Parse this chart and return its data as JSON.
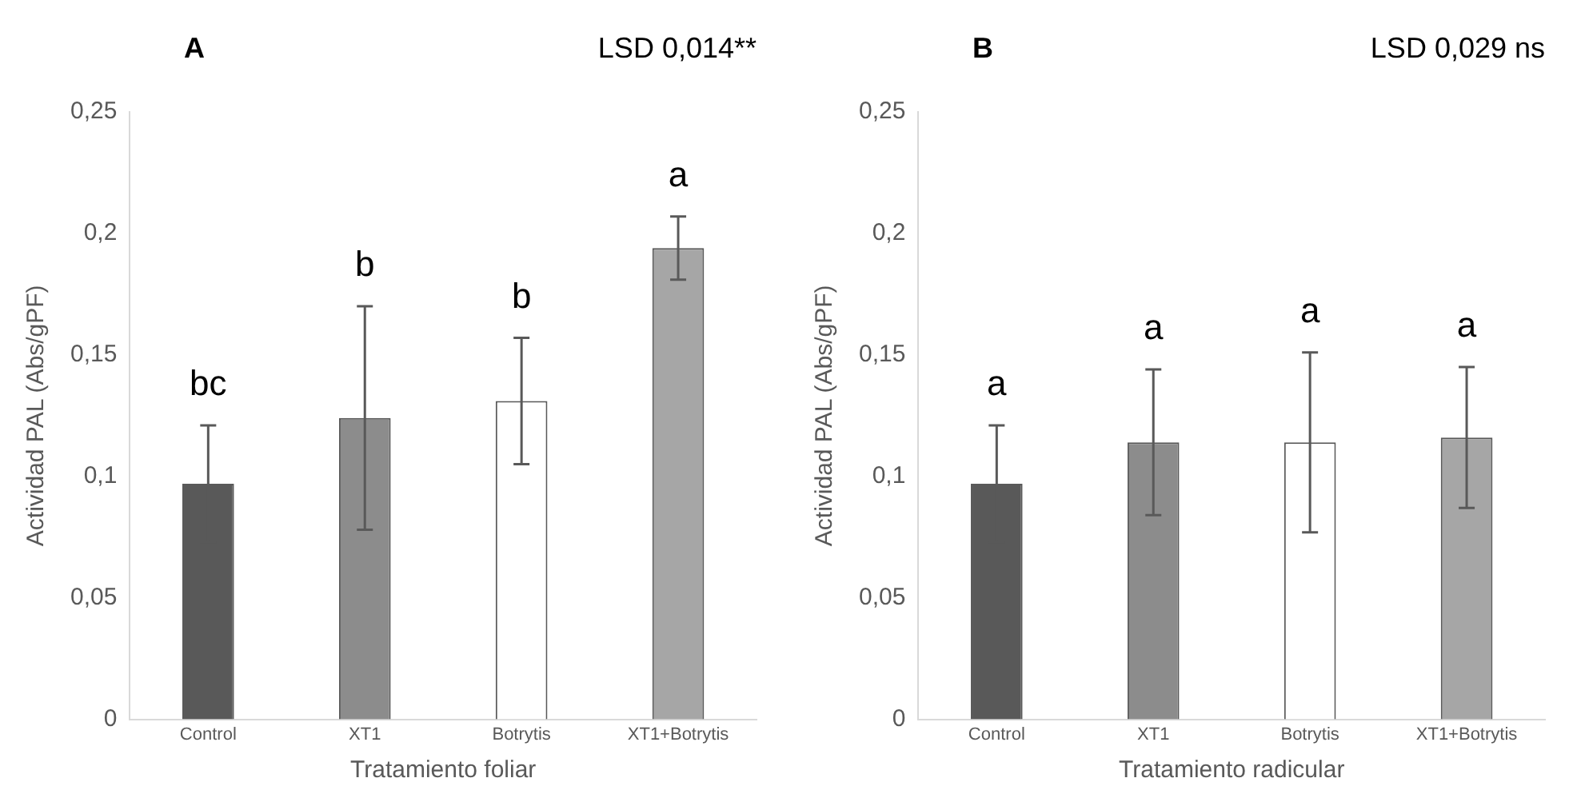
{
  "chart_data": [
    {
      "type": "bar",
      "title": "A",
      "xlabel": "Tratamiento foliar",
      "ylabel": "Actividad PAL (Abs/gPF)",
      "categories": [
        "Control",
        "XT1",
        "Botrytis",
        "XT1+Botrytis"
      ],
      "values": [
        0.097,
        0.124,
        0.131,
        0.194
      ],
      "errors": [
        0.024,
        0.046,
        0.026,
        0.013
      ],
      "colors": [
        "#595959",
        "#8c8c8c",
        "#ffffff",
        "#a6a6a6"
      ],
      "ylim": [
        0,
        0.25
      ],
      "yticks": [
        0,
        {
          "value": 0.05,
          "label": "0,05"
        },
        {
          "value": 0.1,
          "label": "0,1"
        },
        {
          "value": 0.15,
          "label": "0,15"
        },
        {
          "value": 0.2,
          "label": "0,2"
        },
        {
          "value": 0.25,
          "label": "0,25"
        }
      ],
      "grid": false,
      "legend": false,
      "annotations": [
        "LSD 0,014**",
        {
          "text": "bc",
          "x": "Control",
          "y": 0.121
        },
        {
          "text": "b",
          "x": "XT1",
          "y": 0.17
        },
        {
          "text": "b",
          "x": "Botrytis",
          "y": 0.157
        },
        {
          "text": "a",
          "x": "XT1+Botrytis",
          "y": 0.207
        }
      ]
    },
    {
      "type": "bar",
      "title": "B",
      "xlabel": "Tratamiento radicular",
      "ylabel": "Actividad PAL (Abs/gPF)",
      "categories": [
        "Control",
        "XT1",
        "Botrytis",
        "XT1+Botrytis"
      ],
      "values": [
        0.097,
        0.114,
        0.114,
        0.116
      ],
      "errors": [
        0.024,
        0.03,
        0.037,
        0.029
      ],
      "colors": [
        "#595959",
        "#8c8c8c",
        "#ffffff",
        "#a6a6a6"
      ],
      "ylim": [
        0,
        0.25
      ],
      "yticks": [
        0,
        {
          "value": 0.05,
          "label": "0,05"
        },
        {
          "value": 0.1,
          "label": "0,1"
        },
        {
          "value": 0.15,
          "label": "0,15"
        },
        {
          "value": 0.2,
          "label": "0,2"
        },
        {
          "value": 0.25,
          "label": "0,25"
        }
      ],
      "grid": false,
      "legend": false,
      "annotations": [
        "LSD 0,029 ns",
        {
          "text": "a",
          "x": "Control",
          "y": 0.121
        },
        {
          "text": "a",
          "x": "XT1",
          "y": 0.144
        },
        {
          "text": "a",
          "x": "Botrytis",
          "y": 0.151
        },
        {
          "text": "a",
          "x": "XT1+Botrytis",
          "y": 0.145
        }
      ]
    }
  ]
}
